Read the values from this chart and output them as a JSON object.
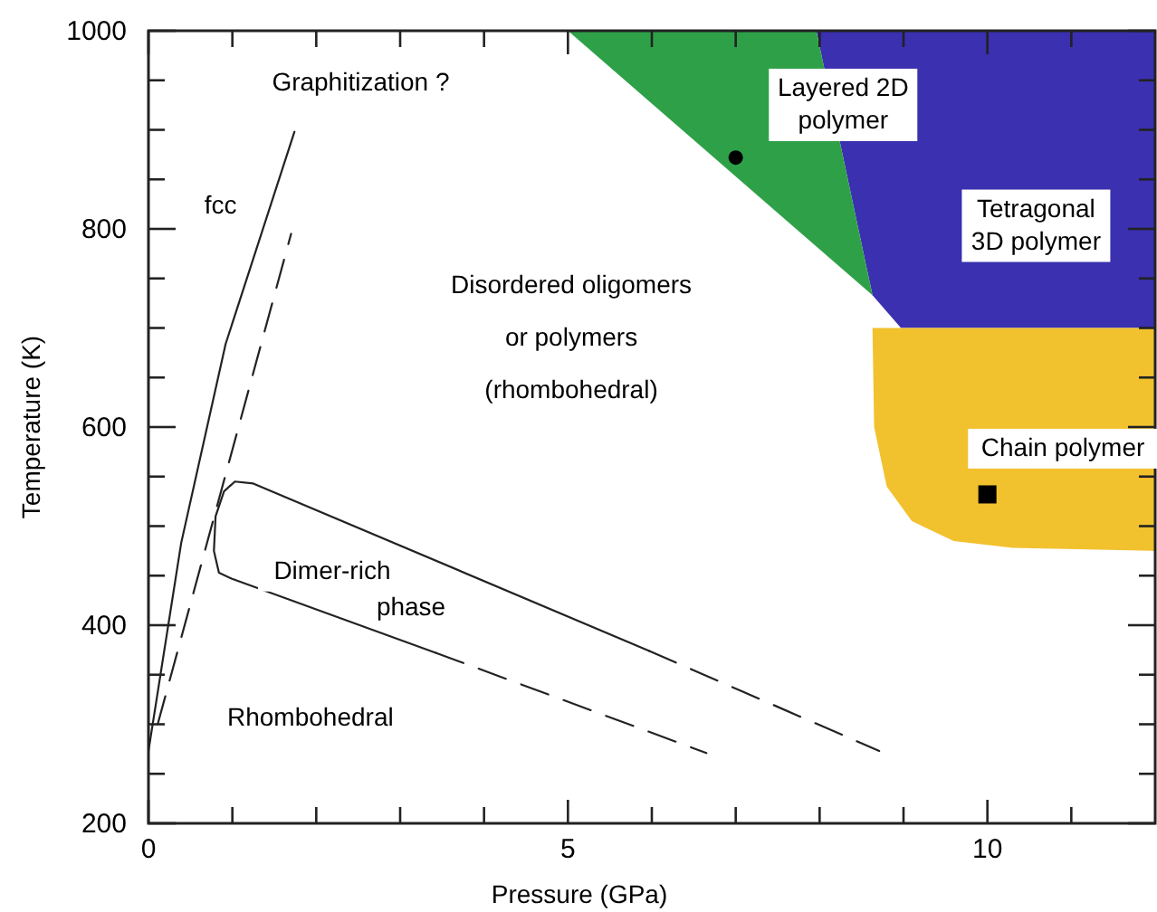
{
  "chart_data": {
    "type": "line",
    "xlabel": "Pressure (GPa)",
    "ylabel": "Temperature (K)",
    "xlim": [
      0,
      12
    ],
    "ylim": [
      200,
      1000
    ],
    "xticks": [
      0,
      {
        "value": 1,
        "label": null
      },
      {
        "value": 2,
        "label": null
      },
      {
        "value": 3,
        "label": null
      },
      {
        "value": 4,
        "label": null
      },
      5,
      {
        "value": 6,
        "label": null
      },
      {
        "value": 7,
        "label": null
      },
      {
        "value": 8,
        "label": null
      },
      {
        "value": 9,
        "label": null
      },
      10,
      {
        "value": 11,
        "label": null
      }
    ],
    "yticks": [
      200,
      {
        "value": 250,
        "label": null
      },
      {
        "value": 300,
        "label": null
      },
      {
        "value": 350,
        "label": null
      },
      400,
      {
        "value": 450,
        "label": null
      },
      {
        "value": 500,
        "label": null
      },
      {
        "value": 550,
        "label": null
      },
      600,
      {
        "value": 650,
        "label": null
      },
      {
        "value": 700,
        "label": null
      },
      {
        "value": 750,
        "label": null
      },
      800,
      {
        "value": 850,
        "label": null
      },
      {
        "value": 900,
        "label": null
      },
      {
        "value": 950,
        "label": null
      },
      1000
    ],
    "grid": false,
    "series": [
      {
        "type": "area",
        "color": "#3a30b0",
        "x": [
          7.96,
          12,
          12,
          8.97,
          8.63
        ],
        "values": [
          1000,
          1000,
          700,
          700,
          733
        ]
      },
      {
        "type": "area",
        "color": "#2ea148",
        "x": [
          5,
          7.96,
          8.63
        ],
        "values": [
          1000,
          1000,
          733
        ]
      },
      {
        "type": "area",
        "color": "#f2c12e",
        "x": [
          8.63,
          12,
          12,
          10.3,
          9.6,
          9.1,
          8.8,
          8.65
        ],
        "values": [
          700,
          700,
          475,
          478,
          485,
          505,
          540,
          600
        ]
      },
      {
        "color": "#222222",
        "line_style": "solid",
        "x": [
          0,
          0.39,
          0.92,
          1.74
        ],
        "values": [
          273,
          483,
          684,
          898
        ]
      },
      {
        "color": "#222222",
        "line_style": "dashed",
        "x": [
          0.11,
          1.7
        ],
        "values": [
          300,
          795
        ]
      },
      {
        "color": "#222222",
        "line_style": "solid",
        "x": [
          3.43,
          0.99,
          0.84,
          0.78,
          0.8,
          0.9,
          1.03,
          1.25,
          5.97
        ],
        "values": [
          372,
          447,
          453,
          475,
          510,
          535,
          545,
          543,
          374
        ]
      },
      {
        "color": "#222222",
        "line_style": "dashed",
        "x": [
          5.97,
          8.71
        ],
        "values": [
          374,
          273
        ]
      },
      {
        "color": "#222222",
        "line_style": "dashed",
        "x": [
          3.43,
          6.65
        ],
        "values": [
          372,
          271
        ]
      },
      {
        "type": "scatter",
        "color": "#000000",
        "marker": "circle",
        "x": [
          7
        ],
        "values": [
          872
        ]
      },
      {
        "type": "scatter",
        "color": "#000000",
        "marker": "square",
        "x": [
          10
        ],
        "values": [
          532
        ]
      }
    ],
    "annotations": [
      "Graphitization ?",
      "fcc",
      "Disordered oligomers\nor polymers\n(rhombohedral)",
      "Layered 2D\npolymer",
      "Tetragonal\n3D polymer",
      "Chain polymer",
      "Dimer-rich",
      "phase",
      "Rhombohedral"
    ]
  }
}
